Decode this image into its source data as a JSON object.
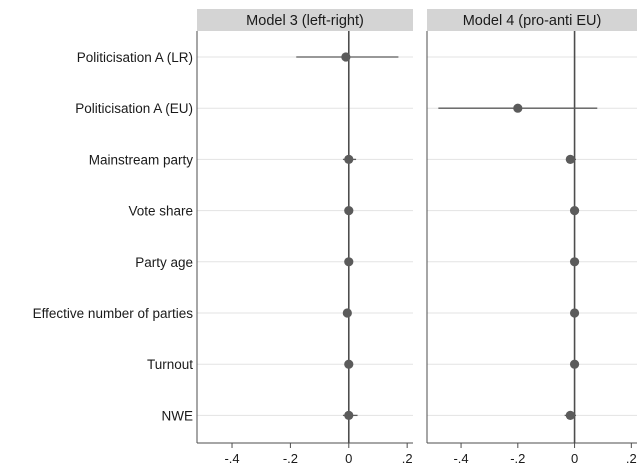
{
  "chart_data": [
    {
      "type": "scatter",
      "panel_title": "Model 3 (left-right)",
      "categories": [
        "Politicisation A (LR)",
        "Politicisation A (EU)",
        "Mainstream party",
        "Vote share",
        "Party age",
        "Effective number of parties",
        "Turnout",
        "NWE"
      ],
      "estimates": [
        -0.01,
        null,
        0.0,
        0.0,
        0.0,
        -0.005,
        0.0,
        0.0
      ],
      "ci_low": [
        -0.18,
        null,
        -0.02,
        -0.004,
        -0.004,
        -0.01,
        -0.004,
        -0.02
      ],
      "ci_high": [
        0.17,
        null,
        0.025,
        0.004,
        0.004,
        0.005,
        0.004,
        0.03
      ],
      "xlim": [
        -0.52,
        0.22
      ],
      "xticks": [
        -0.4,
        -0.2,
        0,
        0.2
      ],
      "xtick_labels": [
        "-.4",
        "-.2",
        "0",
        ".2"
      ],
      "reference_line": 0,
      "grid": true
    },
    {
      "type": "scatter",
      "panel_title": "Model 4 (pro-anti EU)",
      "categories": [
        "Politicisation A (LR)",
        "Politicisation A (EU)",
        "Mainstream party",
        "Vote share",
        "Party age",
        "Effective number of parties",
        "Turnout",
        "NWE"
      ],
      "estimates": [
        null,
        -0.2,
        -0.015,
        0.0,
        0.0,
        0.0,
        0.0,
        -0.015
      ],
      "ci_low": [
        null,
        -0.48,
        -0.03,
        -0.004,
        -0.004,
        -0.006,
        -0.004,
        -0.035
      ],
      "ci_high": [
        null,
        0.08,
        0.005,
        0.004,
        0.004,
        0.006,
        0.004,
        0.005
      ],
      "xlim": [
        -0.52,
        0.22
      ],
      "xticks": [
        -0.4,
        -0.2,
        0,
        0.2
      ],
      "xtick_labels": [
        "-.4",
        "-.2",
        "0",
        ".2"
      ],
      "reference_line": 0,
      "grid": true
    }
  ],
  "colors": {
    "strip": "#d4d4d4",
    "grid": "#e3e3e3",
    "axis": "#4d4d4d",
    "marker": "#5b5b5b",
    "text": "#1a1a1a"
  }
}
